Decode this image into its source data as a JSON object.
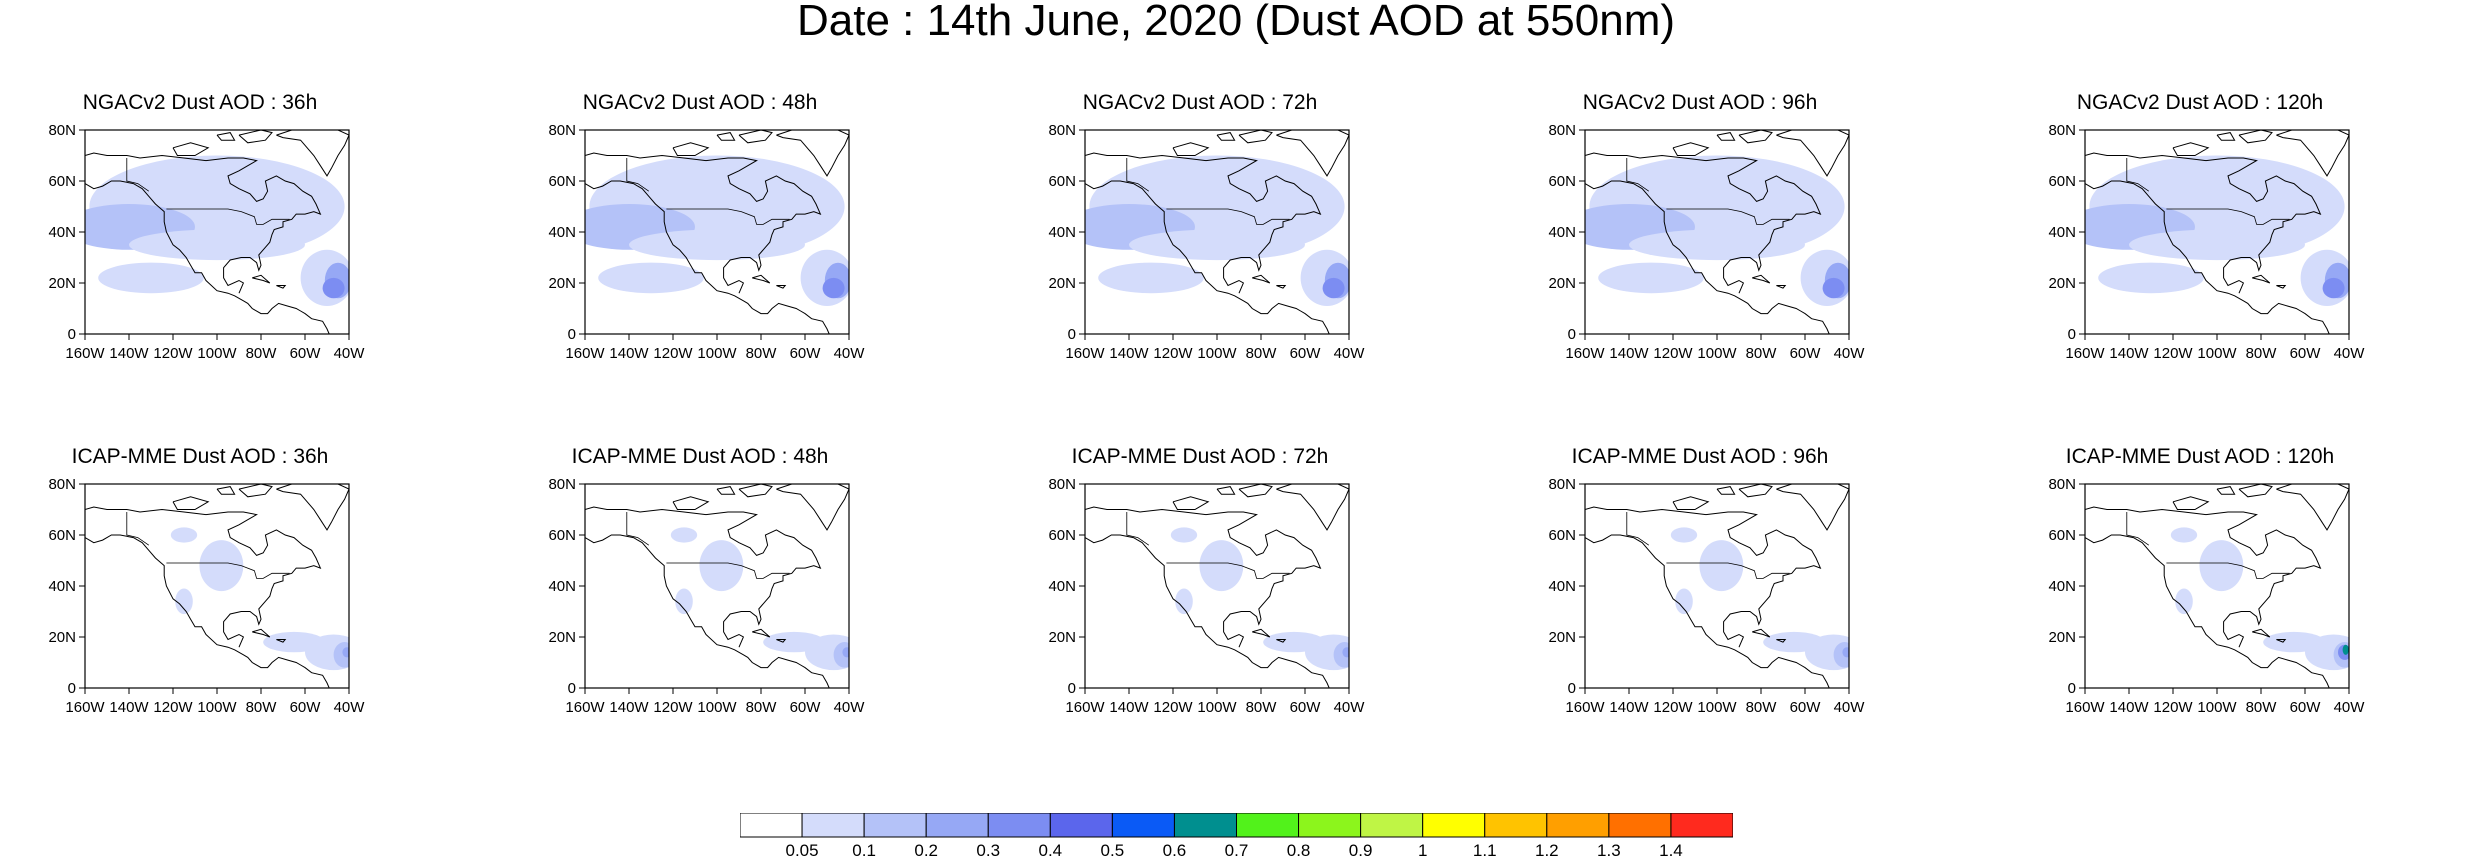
{
  "title": "Date : 14th June, 2020 (Dust AOD at 550nm)",
  "axes": {
    "lat_ticks": [
      "0",
      "20N",
      "40N",
      "60N",
      "80N"
    ],
    "lon_ticks": [
      "160W",
      "140W",
      "120W",
      "100W",
      "80W",
      "60W",
      "40W"
    ],
    "lon_range": [
      -160,
      -40
    ],
    "lat_range": [
      0,
      80
    ]
  },
  "panels": [
    {
      "title": "NGACv2 Dust AOD : 36h",
      "model": "NGACv2",
      "lead": "36h"
    },
    {
      "title": "NGACv2 Dust AOD : 48h",
      "model": "NGACv2",
      "lead": "48h"
    },
    {
      "title": "NGACv2 Dust AOD : 72h",
      "model": "NGACv2",
      "lead": "72h"
    },
    {
      "title": "NGACv2 Dust AOD : 96h",
      "model": "NGACv2",
      "lead": "96h"
    },
    {
      "title": "NGACv2 Dust AOD : 120h",
      "model": "NGACv2",
      "lead": "120h"
    },
    {
      "title": "ICAP-MME Dust AOD : 36h",
      "model": "ICAP-MME",
      "lead": "36h"
    },
    {
      "title": "ICAP-MME Dust AOD : 48h",
      "model": "ICAP-MME",
      "lead": "48h"
    },
    {
      "title": "ICAP-MME Dust AOD : 72h",
      "model": "ICAP-MME",
      "lead": "72h"
    },
    {
      "title": "ICAP-MME Dust AOD : 96h",
      "model": "ICAP-MME",
      "lead": "96h"
    },
    {
      "title": "ICAP-MME Dust AOD : 120h",
      "model": "ICAP-MME",
      "lead": "120h"
    }
  ],
  "colorbar": {
    "labels": [
      "0.05",
      "0.1",
      "0.2",
      "0.3",
      "0.4",
      "0.5",
      "0.6",
      "0.7",
      "0.8",
      "0.9",
      "1",
      "1.1",
      "1.2",
      "1.3",
      "1.4"
    ],
    "colors": [
      "#ffffff",
      "#d4dcfb",
      "#b4c2f8",
      "#96a8f5",
      "#7c8df2",
      "#5b66ec",
      "#0a5af6",
      "#008f8f",
      "#52f21b",
      "#8cf51c",
      "#bff545",
      "#ffff00",
      "#ffc300",
      "#ff9f00",
      "#ff7000",
      "#ff2a1e"
    ]
  }
}
